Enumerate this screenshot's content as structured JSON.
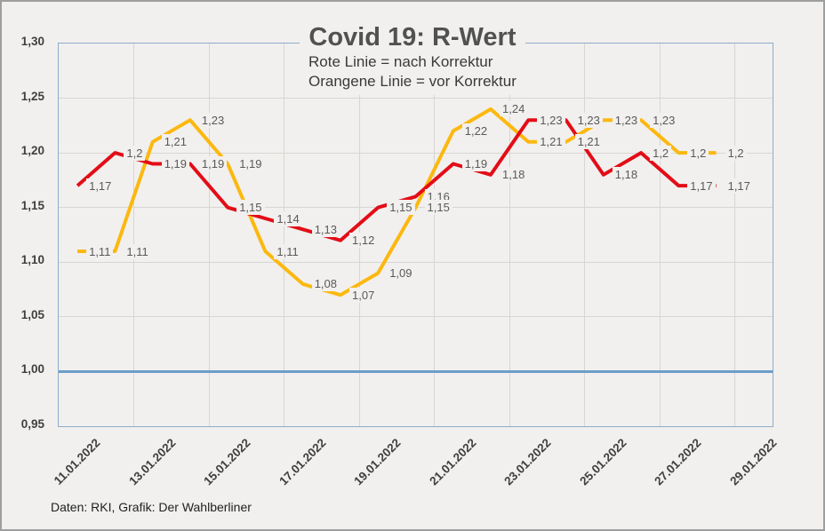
{
  "chart_data": {
    "type": "line",
    "title": "Covid 19: R-Wert",
    "subtitle_line1": "Rote Linie = nach Korrektur",
    "subtitle_line2": "Orangene Linie = vor Korrektur",
    "x_dates": [
      "11.01.2022",
      "12.01.2022",
      "13.01.2022",
      "14.01.2022",
      "15.01.2022",
      "16.01.2022",
      "17.01.2022",
      "18.01.2022",
      "19.01.2022",
      "20.01.2022",
      "21.01.2022",
      "22.01.2022",
      "23.01.2022",
      "24.01.2022",
      "25.01.2022",
      "26.01.2022",
      "27.01.2022",
      "28.01.2022"
    ],
    "x_slot_count": 19,
    "x_ticks": [
      "11.01.2022",
      "13.01.2022",
      "15.01.2022",
      "17.01.2022",
      "19.01.2022",
      "21.01.2022",
      "23.01.2022",
      "25.01.2022",
      "27.01.2022",
      "29.01.2022"
    ],
    "y_ticks": [
      "1,30",
      "1,25",
      "1,20",
      "1,15",
      "1,10",
      "1,05",
      "1,00",
      "0,95"
    ],
    "y_min": 0.95,
    "y_max": 1.3,
    "y_gridlines": [
      1.25,
      1.2,
      1.15,
      1.1,
      1.05
    ],
    "grid_on": true,
    "legend_position": "subtitle-text",
    "series": [
      {
        "id": "nach-korrektur",
        "name": "Rote Linie = nach Korrektur",
        "color": "#e30d17",
        "values": [
          1.17,
          1.2,
          1.19,
          1.19,
          1.15,
          1.14,
          1.13,
          1.12,
          1.15,
          1.16,
          1.19,
          1.18,
          1.23,
          1.23,
          1.18,
          1.2,
          1.17,
          1.17
        ],
        "labels": [
          "1,17",
          "1,2",
          "1,19",
          "1,19",
          "1,15",
          "1,14",
          "1,13",
          "1,12",
          "1,15",
          "1,16",
          "1,19",
          "1,18",
          "1,23",
          "1,23",
          "1,18",
          "1,2",
          "1,17",
          "1,17"
        ]
      },
      {
        "id": "vor-korrektur",
        "name": "Orangene Linie = vor Korrektur",
        "color": "#fcb80f",
        "values": [
          1.11,
          1.11,
          1.21,
          1.23,
          1.19,
          1.11,
          1.08,
          1.07,
          1.09,
          1.15,
          1.22,
          1.24,
          1.21,
          1.21,
          1.23,
          1.23,
          1.2,
          1.2
        ],
        "labels": [
          "1,11",
          "1,11",
          "1,21",
          "1,23",
          "1,19",
          "1,11",
          "1,08",
          "1,07",
          "1,09",
          "1,15",
          "1,22",
          "1,24",
          "1,21",
          "1,21",
          "1,23",
          "1,23",
          "1,2",
          "1,2"
        ]
      }
    ],
    "reference_line": {
      "value": 1.0,
      "color": "#6b9dc8"
    },
    "colors": {
      "background": "#f1f0ee",
      "gridline": "#d8d6d3",
      "plot_border": "#8cadcb",
      "data_label_text": "#595959",
      "axis_label_text": "#3f3f3f"
    }
  },
  "footer": {
    "credit": "Daten: RKI, Grafik: Der Wahlberliner"
  }
}
